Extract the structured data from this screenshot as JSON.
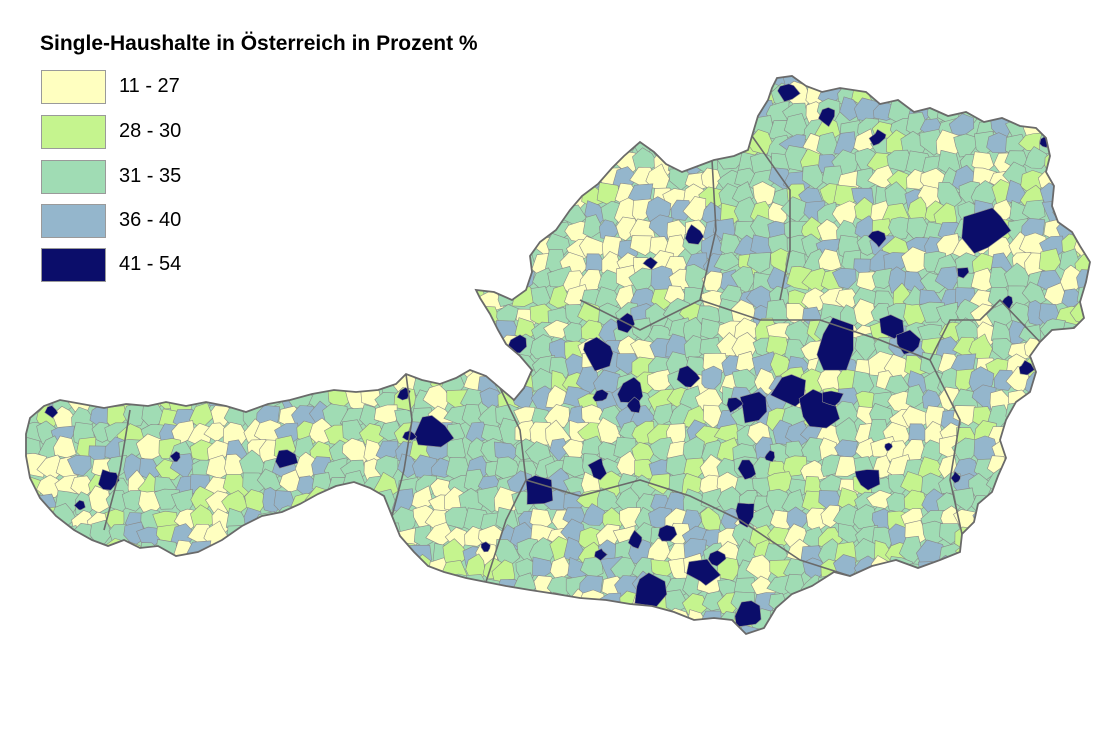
{
  "title": "Single-Haushalte in Österreich in Prozent %",
  "legend": {
    "items": [
      {
        "label": "11 - 27",
        "color": "#ffffc0"
      },
      {
        "label": "28 - 30",
        "color": "#c5f48e"
      },
      {
        "label": "31 - 35",
        "color": "#a0dcb4"
      },
      {
        "label": "36 - 40",
        "color": "#94b6cc"
      },
      {
        "label": "41 - 54",
        "color": "#0b0d6a"
      }
    ]
  },
  "map": {
    "region": "Österreich",
    "border_color": "#8a8a8a",
    "state_border_color": "#6a6a6a"
  }
}
